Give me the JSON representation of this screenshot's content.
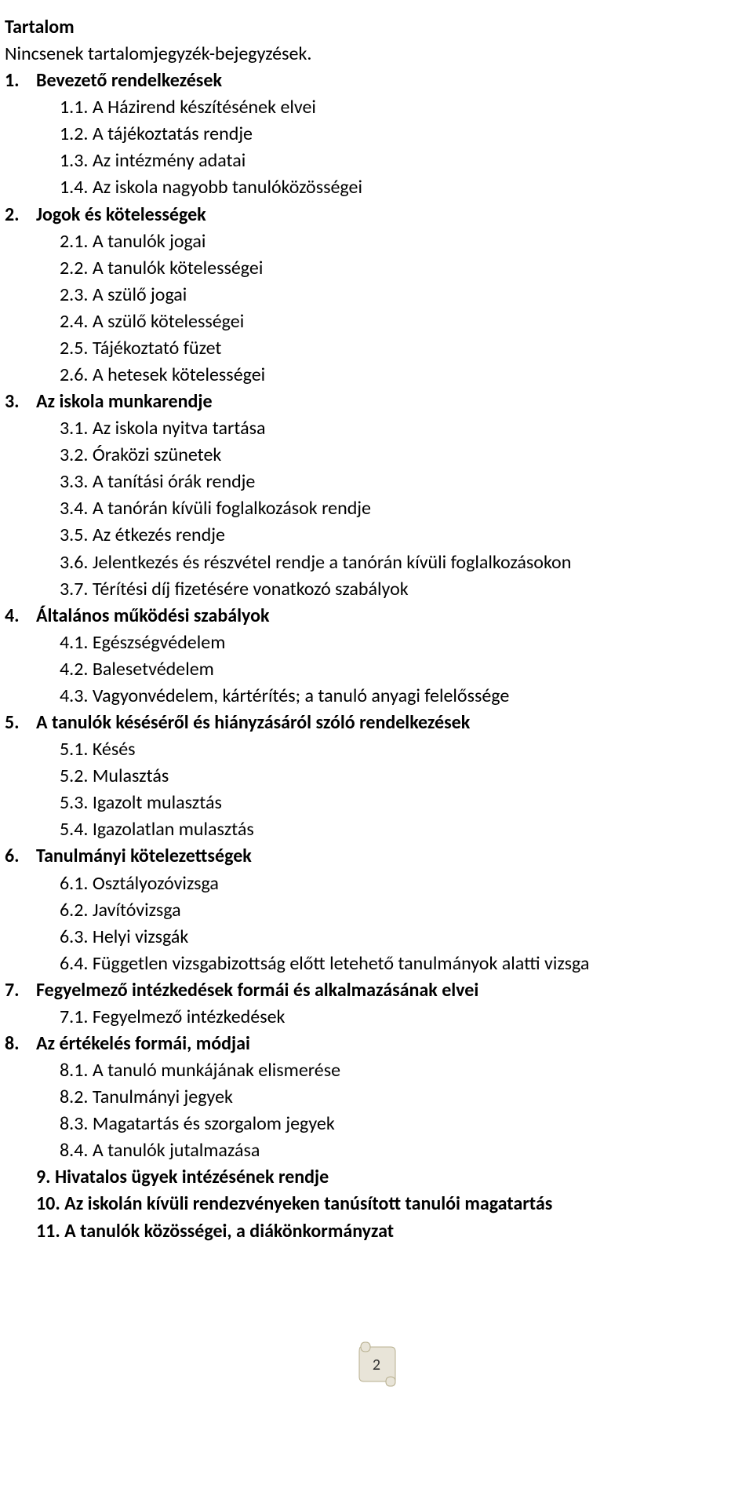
{
  "doc": {
    "title": "Tartalom",
    "notice": "Nincsenek tartalomjegyzék-bejegyzések.",
    "page_number": "2",
    "text_color": "#000000",
    "background_color": "#ffffff",
    "font_family": "Calibri",
    "base_fontsize_pt": 14,
    "scroll_fill": "#e8e4d8",
    "scroll_stroke": "#b8b090"
  },
  "toc": [
    {
      "num": "1.",
      "title": "Bevezető rendelkezések",
      "bold": true,
      "sub": [
        {
          "num": "1.1.",
          "title": "A Házirend készítésének elvei"
        },
        {
          "num": "1.2.",
          "title": "A tájékoztatás rendje"
        },
        {
          "num": "1.3.",
          "title": "Az intézmény adatai"
        },
        {
          "num": "1.4.",
          "title": "Az iskola nagyobb tanulóközösségei"
        }
      ]
    },
    {
      "num": "2.",
      "title": "Jogok és kötelességek",
      "bold": true,
      "sub": [
        {
          "num": "2.1.",
          "title": "A tanulók jogai"
        },
        {
          "num": "2.2.",
          "title": "A tanulók kötelességei"
        },
        {
          "num": "2.3.",
          "title": "A szülő jogai"
        },
        {
          "num": "2.4.",
          "title": "A szülő kötelességei"
        },
        {
          "num": "2.5.",
          "title": "Tájékoztató füzet"
        },
        {
          "num": "2.6.",
          "title": "A hetesek kötelességei"
        }
      ]
    },
    {
      "num": "3.",
      "title": "Az iskola munkarendje",
      "bold": true,
      "sub": [
        {
          "num": "3.1.",
          "title": "Az iskola nyitva tartása"
        },
        {
          "num": "3.2.",
          "title": "Óraközi szünetek"
        },
        {
          "num": "3.3.",
          "title": "A tanítási órák rendje"
        },
        {
          "num": "3.4.",
          "title": "A tanórán kívüli foglalkozások rendje"
        },
        {
          "num": "3.5.",
          "title": "Az étkezés rendje"
        },
        {
          "num": "3.6.",
          "title": "Jelentkezés és részvétel rendje a tanórán kívüli foglalkozásokon"
        },
        {
          "num": "3.7.",
          "title": "Térítési díj fizetésére vonatkozó szabályok"
        }
      ]
    },
    {
      "num": "4.",
      "title": "Általános működési szabályok",
      "bold": true,
      "sub": [
        {
          "num": "4.1.",
          "title": "Egészségvédelem"
        },
        {
          "num": "4.2.",
          "title": "Balesetvédelem"
        },
        {
          "num": "4.3.",
          "title": "Vagyonvédelem, kártérítés; a tanuló anyagi felelőssége"
        }
      ]
    },
    {
      "num": "5.",
      "title": "A tanulók késéséről és hiányzásáról szóló rendelkezések",
      "bold": true,
      "sub": [
        {
          "num": "5.1.",
          "title": "Késés"
        },
        {
          "num": "5.2.",
          "title": "Mulasztás"
        },
        {
          "num": "5.3.",
          "title": "Igazolt mulasztás"
        },
        {
          "num": "5.4.",
          "title": "Igazolatlan mulasztás"
        }
      ]
    },
    {
      "num": "6.",
      "title": "Tanulmányi kötelezettségek",
      "bold": true,
      "sub": [
        {
          "num": "6.1.",
          "title": "Osztályozóvizsga"
        },
        {
          "num": "6.2.",
          "title": "Javítóvizsga"
        },
        {
          "num": "6.3.",
          "title": "Helyi vizsgák"
        },
        {
          "num": "6.4.",
          "title": "Független vizsgabizottság előtt letehető tanulmányok alatti vizsga"
        }
      ]
    },
    {
      "num": "7.",
      "title": "Fegyelmező intézkedések formái és alkalmazásának elvei",
      "bold": true,
      "sub": [
        {
          "num": "7.1.",
          "title": "Fegyelmező intézkedések"
        }
      ]
    },
    {
      "num": "8.",
      "title": "Az értékelés formái, módjai",
      "bold": true,
      "sub": [
        {
          "num": "8.1.",
          "title": "A tanuló munkájának elismerése"
        },
        {
          "num": "8.2.",
          "title": "Tanulmányi jegyek"
        },
        {
          "num": "8.3.",
          "title": "Magatartás és szorgalom jegyek"
        },
        {
          "num": "8.4.",
          "title": "A tanulók jutalmazása"
        }
      ]
    },
    {
      "num": "9.",
      "title": "Hivatalos ügyek intézésének rendje",
      "bold": true,
      "sub": []
    },
    {
      "num": "10.",
      "title": "Az iskolán kívüli rendezvényeken tanúsított tanulói magatartás",
      "bold": true,
      "sub": []
    },
    {
      "num": "11.",
      "title": "A tanulók közösségei, a diákönkormányzat",
      "bold": true,
      "sub": []
    }
  ]
}
